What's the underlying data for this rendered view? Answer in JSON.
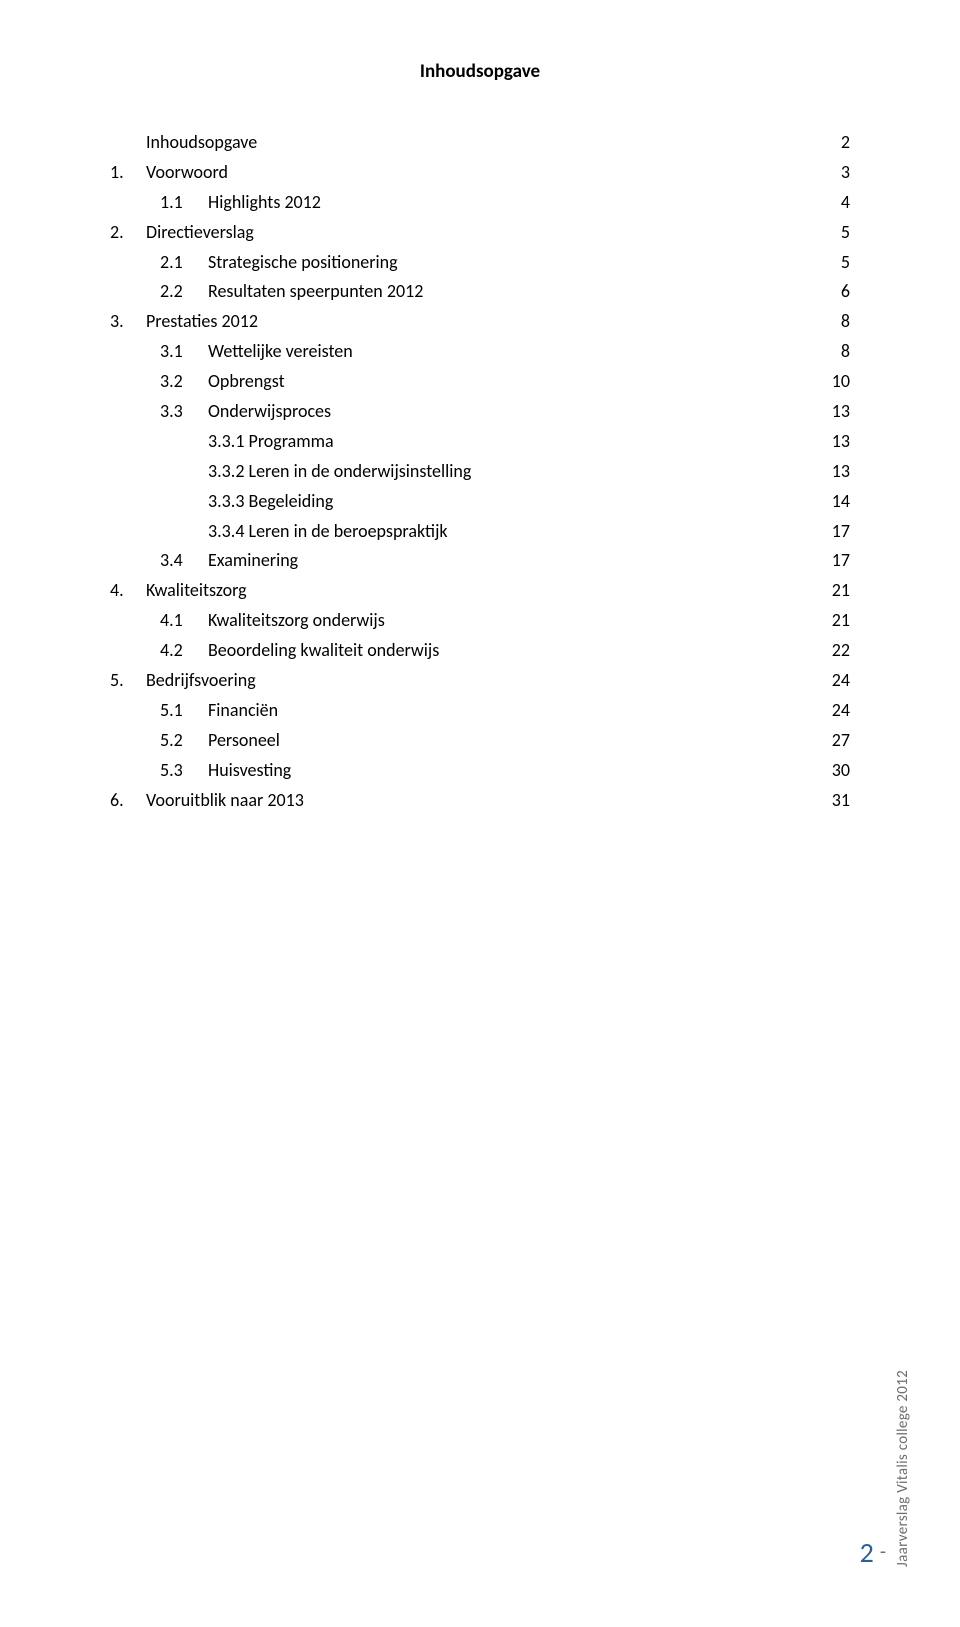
{
  "title": "Inhoudsopgave",
  "footer": {
    "page_number": "2",
    "separator": "-",
    "side_label": "Jaarverslag Vitalis college 2012"
  },
  "colors": {
    "text": "#000000",
    "footer_text": "#6e6e6e",
    "page_number": "#2a6099",
    "background": "#ffffff"
  },
  "typography": {
    "font_family": "Calibri",
    "title_fontsize": 19,
    "body_fontsize": 18,
    "side_fontsize": 15,
    "page_num_fontsize": 28
  },
  "toc": [
    {
      "level": 0,
      "num": "",
      "label": "Inhoudsopgave",
      "page": "2"
    },
    {
      "level": 0,
      "num": "1.",
      "label": "Voorwoord",
      "page": "3"
    },
    {
      "level": 1,
      "num": "1.1",
      "label": "Highlights 2012",
      "page": "4"
    },
    {
      "level": 0,
      "num": "2.",
      "label": "Directieverslag",
      "page": "5"
    },
    {
      "level": 1,
      "num": "2.1",
      "label": "Strategische positionering",
      "page": "5"
    },
    {
      "level": 1,
      "num": "2.2",
      "label": "Resultaten speerpunten 2012",
      "page": "6"
    },
    {
      "level": 0,
      "num": "3.",
      "label": "Prestaties 2012",
      "page": "8"
    },
    {
      "level": 1,
      "num": "3.1",
      "label": "Wettelijke vereisten",
      "page": "8"
    },
    {
      "level": 1,
      "num": "3.2",
      "label": "Opbrengst",
      "page": "10"
    },
    {
      "level": 1,
      "num": "3.3",
      "label": "Onderwijsproces",
      "page": "13"
    },
    {
      "level": 2,
      "num": "",
      "label": "3.3.1 Programma",
      "page": "13"
    },
    {
      "level": 2,
      "num": "",
      "label": "3.3.2 Leren in de onderwijsinstelling",
      "page": "13"
    },
    {
      "level": 2,
      "num": "",
      "label": "3.3.3 Begeleiding",
      "page": "14"
    },
    {
      "level": 2,
      "num": "",
      "label": "3.3.4 Leren in de beroepspraktijk",
      "page": "17"
    },
    {
      "level": 1,
      "num": "3.4",
      "label": "Examinering",
      "page": "17"
    },
    {
      "level": 0,
      "num": "4.",
      "label": "Kwaliteitszorg",
      "page": "21"
    },
    {
      "level": 1,
      "num": "4.1",
      "label": "Kwaliteitszorg onderwijs",
      "page": "21"
    },
    {
      "level": 1,
      "num": "4.2",
      "label": "Beoordeling kwaliteit onderwijs",
      "page": "22"
    },
    {
      "level": 0,
      "num": "5.",
      "label": "Bedrijfsvoering",
      "page": "24"
    },
    {
      "level": 1,
      "num": "5.1",
      "label": "Financiën",
      "page": "24"
    },
    {
      "level": 1,
      "num": "5.2",
      "label": "Personeel",
      "page": "27"
    },
    {
      "level": 1,
      "num": "5.3",
      "label": "Huisvesting",
      "page": "30"
    },
    {
      "level": 0,
      "num": "6.",
      "label": "Vooruitblik naar 2013",
      "page": "31"
    }
  ]
}
